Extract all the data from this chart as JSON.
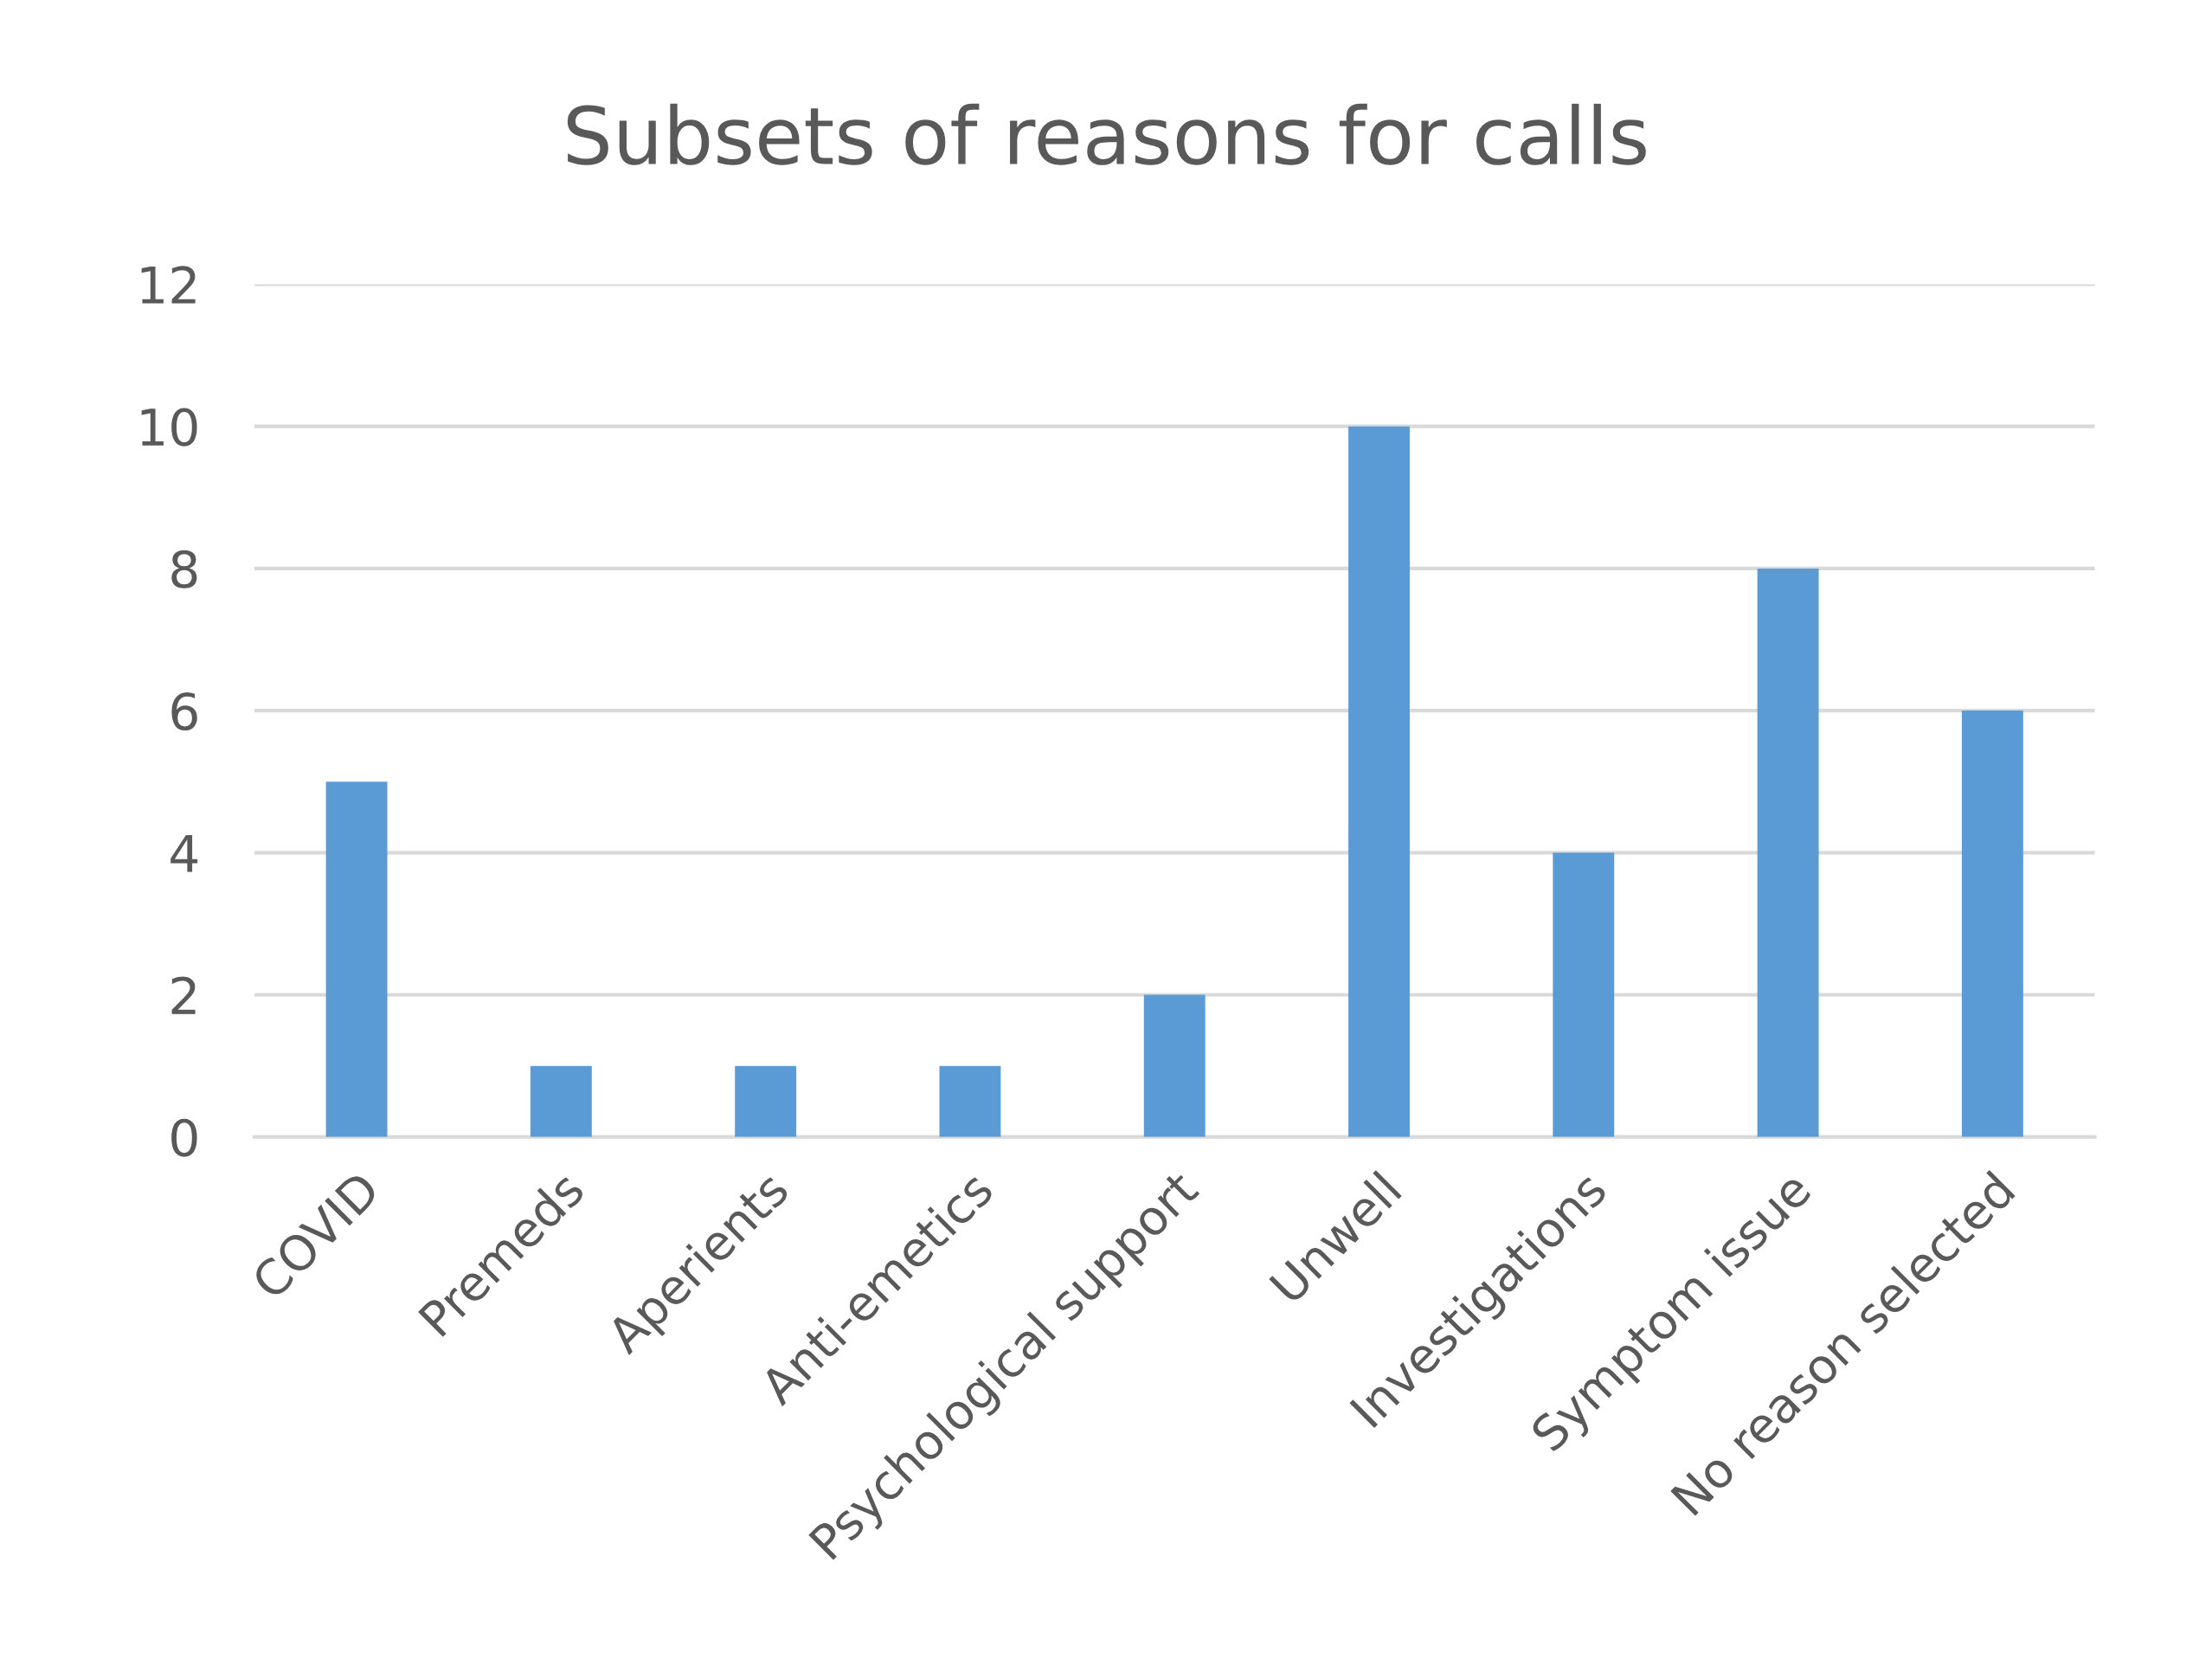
{
  "chart_data": {
    "type": "bar",
    "title": "Subsets of reasons for calls",
    "categories": [
      "COVID",
      "Premeds",
      "Aperients",
      "Anti-emetics",
      "Psychological support",
      "Unwell",
      "Investigations",
      "Symptom issue",
      "No reason selected"
    ],
    "values": [
      5,
      1,
      1,
      1,
      2,
      10,
      4,
      8,
      6
    ],
    "color": "#5b9bd5",
    "ylim": [
      0,
      12
    ],
    "yticks": [
      0,
      2,
      4,
      6,
      8,
      10,
      12
    ],
    "grid": "y",
    "legend": false
  }
}
